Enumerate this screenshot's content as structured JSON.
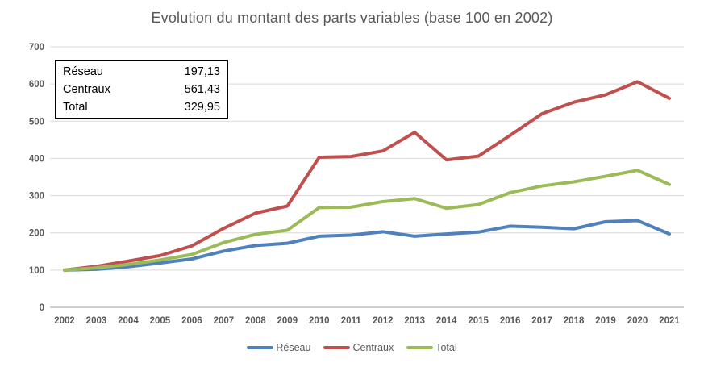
{
  "title": "Evolution du montant des parts variables (base 100 en 2002)",
  "colors": {
    "reseau": "#4F81BD",
    "centraux": "#C0504D",
    "total": "#9BBB59",
    "gridline": "#D9D9D9",
    "axis_line": "#BFBFBF",
    "text": "#595959"
  },
  "summary_box": {
    "rows": [
      {
        "label": "Réseau",
        "value": "197,13"
      },
      {
        "label": "Centraux",
        "value": "561,43"
      },
      {
        "label": "Total",
        "value": "329,95"
      }
    ]
  },
  "chart_data": {
    "type": "line",
    "title": "Evolution du montant des parts variables (base 100 en 2002)",
    "categories": [
      2002,
      2003,
      2004,
      2005,
      2006,
      2007,
      2008,
      2009,
      2010,
      2011,
      2012,
      2013,
      2014,
      2015,
      2016,
      2017,
      2018,
      2019,
      2020,
      2021
    ],
    "series": [
      {
        "name": "Réseau",
        "color": "#4F81BD",
        "values": [
          100,
          102,
          109,
          119,
          130,
          151,
          166,
          172,
          191,
          194,
          203,
          191,
          197,
          202,
          218,
          215,
          211,
          230,
          233,
          197.13
        ]
      },
      {
        "name": "Centraux",
        "color": "#C0504D",
        "values": [
          100,
          110,
          124,
          139,
          165,
          212,
          253,
          272,
          403,
          405,
          420,
          470,
          396,
          406,
          462,
          520,
          551,
          571,
          606,
          561.43
        ]
      },
      {
        "name": "Total",
        "color": "#9BBB59",
        "values": [
          100,
          106,
          115,
          127,
          142,
          174,
          196,
          207,
          268,
          269,
          284,
          292,
          266,
          276,
          308,
          326,
          337,
          352,
          368,
          329.95
        ]
      }
    ],
    "xlabel": "",
    "ylabel": "",
    "ylim": [
      0,
      700
    ],
    "y_tick_step": 100,
    "grid": "horizontal",
    "legend_position": "bottom"
  }
}
